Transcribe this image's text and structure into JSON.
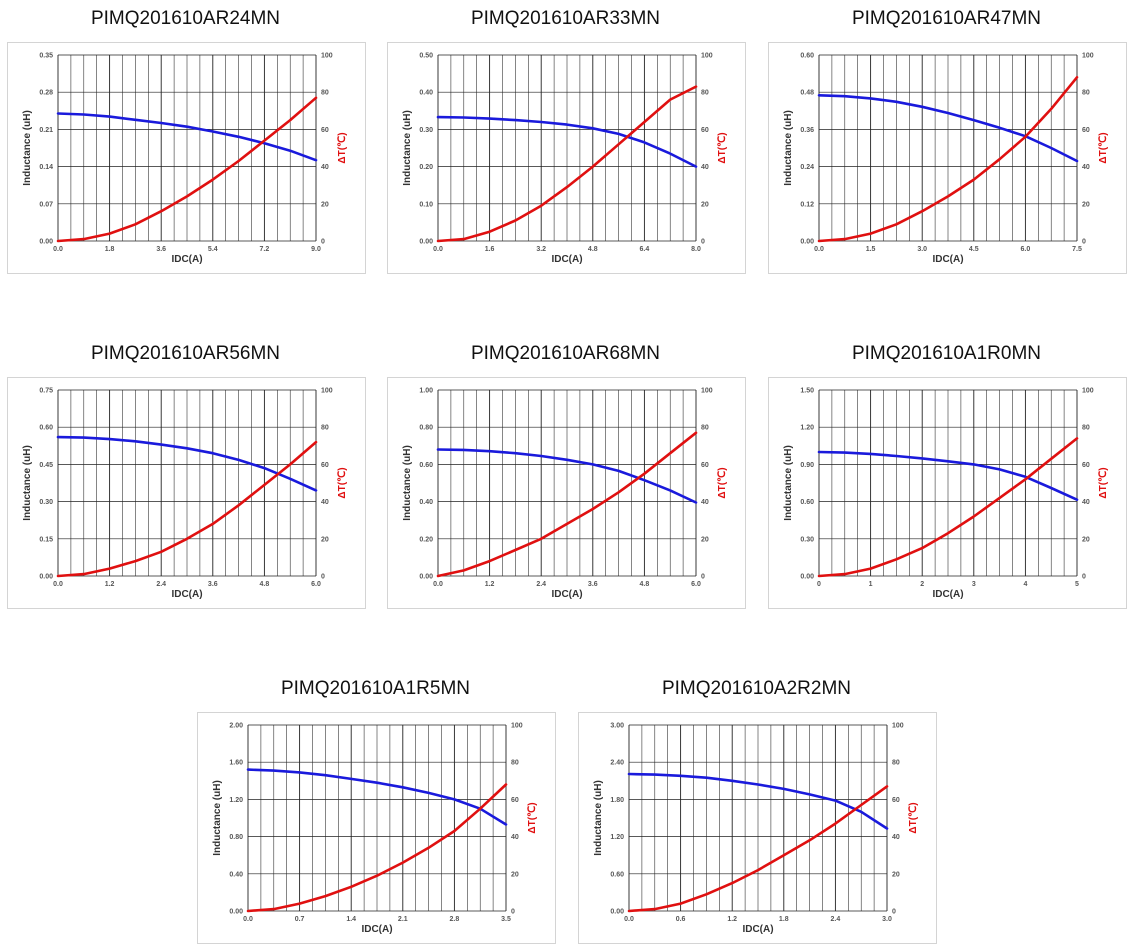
{
  "colors": {
    "inductance_line": "#1a1adc",
    "temperature_line": "#e01010",
    "grid": "#222222",
    "secondary_axis": "#e01010"
  },
  "chart_data": [
    {
      "type": "line",
      "title": "PIMQ201610AR24MN",
      "xlabel": "IDC(A)",
      "ylabel": "Inductance (uH)",
      "y2label": "ΔT(℃)",
      "xlim": [
        0,
        9
      ],
      "xticks": [
        "0.0",
        "1.8",
        "3.6",
        "5.4",
        "7.2",
        "9.0"
      ],
      "ylim": [
        0,
        0.35
      ],
      "yticks": [
        "0.00",
        "0.07",
        "0.14",
        "0.21",
        "0.28",
        "0.35"
      ],
      "y2lim": [
        0,
        100
      ],
      "y2ticks": [
        "0",
        "20",
        "40",
        "60",
        "80",
        "100"
      ],
      "grid": true,
      "series": [
        {
          "axis": "left",
          "x": [
            0,
            0.9,
            1.8,
            2.7,
            3.6,
            4.5,
            5.4,
            6.3,
            7.2,
            8.1,
            9.0
          ],
          "y": [
            0.24,
            0.238,
            0.234,
            0.228,
            0.222,
            0.215,
            0.206,
            0.196,
            0.184,
            0.17,
            0.152
          ]
        },
        {
          "axis": "right",
          "x": [
            0,
            0.9,
            1.8,
            2.7,
            3.6,
            4.5,
            5.4,
            6.3,
            7.2,
            8.1,
            9.0
          ],
          "y": [
            0,
            1,
            4,
            9,
            16,
            24,
            33,
            43,
            54,
            65,
            77
          ]
        }
      ]
    },
    {
      "type": "line",
      "title": "PIMQ201610AR33MN",
      "xlabel": "IDC(A)",
      "ylabel": "Inductance (uH)",
      "y2label": "ΔT(℃)",
      "xlim": [
        0,
        8
      ],
      "xticks": [
        "0.0",
        "1.6",
        "3.2",
        "4.8",
        "6.4",
        "8.0"
      ],
      "ylim": [
        0,
        0.5
      ],
      "yticks": [
        "0.00",
        "0.10",
        "0.20",
        "0.30",
        "0.40",
        "0.50"
      ],
      "y2lim": [
        0,
        100
      ],
      "y2ticks": [
        "0",
        "20",
        "40",
        "60",
        "80",
        "100"
      ],
      "grid": true,
      "series": [
        {
          "axis": "left",
          "x": [
            0,
            0.8,
            1.6,
            2.4,
            3.2,
            4.0,
            4.8,
            5.6,
            6.4,
            7.2,
            8.0
          ],
          "y": [
            0.333,
            0.332,
            0.329,
            0.325,
            0.32,
            0.313,
            0.303,
            0.288,
            0.265,
            0.235,
            0.2
          ]
        },
        {
          "axis": "right",
          "x": [
            0,
            0.8,
            1.6,
            2.4,
            3.2,
            4.0,
            4.8,
            5.6,
            6.4,
            7.2,
            8.0
          ],
          "y": [
            0,
            1,
            5,
            11,
            19,
            29,
            40,
            52,
            64,
            76,
            83
          ]
        }
      ]
    },
    {
      "type": "line",
      "title": "PIMQ201610AR47MN",
      "xlabel": "IDC(A)",
      "ylabel": "Inductance (uH)",
      "y2label": "ΔT(℃)",
      "xlim": [
        0,
        7.5
      ],
      "xticks": [
        "0.0",
        "1.5",
        "3.0",
        "4.5",
        "6.0",
        "7.5"
      ],
      "ylim": [
        0,
        0.6
      ],
      "yticks": [
        "0.00",
        "0.12",
        "0.24",
        "0.36",
        "0.48",
        "0.60"
      ],
      "y2lim": [
        0,
        100
      ],
      "y2ticks": [
        "0",
        "20",
        "40",
        "60",
        "80",
        "100"
      ],
      "grid": true,
      "series": [
        {
          "axis": "left",
          "x": [
            0,
            0.75,
            1.5,
            2.25,
            3.0,
            3.75,
            4.5,
            5.25,
            6.0,
            6.75,
            7.5
          ],
          "y": [
            0.47,
            0.467,
            0.46,
            0.449,
            0.433,
            0.413,
            0.39,
            0.365,
            0.338,
            0.3,
            0.258
          ]
        },
        {
          "axis": "right",
          "x": [
            0,
            0.75,
            1.5,
            2.25,
            3.0,
            3.75,
            4.5,
            5.25,
            6.0,
            6.75,
            7.5
          ],
          "y": [
            0,
            1,
            4,
            9,
            16,
            24,
            33,
            44,
            56,
            71,
            88
          ]
        }
      ]
    },
    {
      "type": "line",
      "title": "PIMQ201610AR56MN",
      "xlabel": "IDC(A)",
      "ylabel": "Inductance (uH)",
      "y2label": "ΔT(℃)",
      "xlim": [
        0,
        6
      ],
      "xticks": [
        "0.0",
        "1.2",
        "2.4",
        "3.6",
        "4.8",
        "6.0"
      ],
      "ylim": [
        0,
        0.75
      ],
      "yticks": [
        "0.00",
        "0.15",
        "0.30",
        "0.45",
        "0.60",
        "0.75"
      ],
      "y2lim": [
        0,
        100
      ],
      "y2ticks": [
        "0",
        "20",
        "40",
        "60",
        "80",
        "100"
      ],
      "grid": true,
      "series": [
        {
          "axis": "left",
          "x": [
            0,
            0.6,
            1.2,
            1.8,
            2.4,
            3.0,
            3.6,
            4.2,
            4.8,
            5.4,
            6.0
          ],
          "y": [
            0.56,
            0.558,
            0.552,
            0.543,
            0.53,
            0.515,
            0.495,
            0.468,
            0.435,
            0.392,
            0.345
          ]
        },
        {
          "axis": "right",
          "x": [
            0,
            0.6,
            1.2,
            1.8,
            2.4,
            3.0,
            3.6,
            4.2,
            4.8,
            5.4,
            6.0
          ],
          "y": [
            0,
            1,
            4,
            8,
            13,
            20,
            28,
            38,
            49,
            60,
            72
          ]
        }
      ]
    },
    {
      "type": "line",
      "title": "PIMQ201610AR68MN",
      "xlabel": "IDC(A)",
      "ylabel": "Inductance (uH)",
      "y2label": "ΔT(℃)",
      "xlim": [
        0,
        6
      ],
      "xticks": [
        "0.0",
        "1.2",
        "2.4",
        "3.6",
        "4.8",
        "6.0"
      ],
      "ylim": [
        0,
        1.0
      ],
      "yticks": [
        "0.00",
        "0.20",
        "0.40",
        "0.60",
        "0.80",
        "1.00"
      ],
      "y2lim": [
        0,
        100
      ],
      "y2ticks": [
        "0",
        "20",
        "40",
        "60",
        "80",
        "100"
      ],
      "grid": true,
      "series": [
        {
          "axis": "left",
          "x": [
            0,
            0.6,
            1.2,
            1.8,
            2.4,
            3.0,
            3.6,
            4.2,
            4.8,
            5.4,
            6.0
          ],
          "y": [
            0.68,
            0.678,
            0.671,
            0.66,
            0.645,
            0.625,
            0.6,
            0.565,
            0.515,
            0.46,
            0.395
          ]
        },
        {
          "axis": "right",
          "x": [
            0,
            0.6,
            1.2,
            1.8,
            2.4,
            3.0,
            3.6,
            4.2,
            4.8,
            5.4,
            6.0
          ],
          "y": [
            0,
            3,
            8,
            14,
            20,
            28,
            36,
            45,
            55,
            66,
            77
          ]
        }
      ]
    },
    {
      "type": "line",
      "title": "PIMQ201610A1R0MN",
      "xlabel": "IDC(A)",
      "ylabel": "Inductance (uH)",
      "y2label": "ΔT(℃)",
      "xlim": [
        0,
        5
      ],
      "xticks": [
        "0",
        "1",
        "2",
        "3",
        "4",
        "5"
      ],
      "ylim": [
        0,
        1.5
      ],
      "yticks": [
        "0.00",
        "0.30",
        "0.60",
        "0.90",
        "1.20",
        "1.50"
      ],
      "y2lim": [
        0,
        100
      ],
      "y2ticks": [
        "0",
        "20",
        "40",
        "60",
        "80",
        "100"
      ],
      "grid": true,
      "series": [
        {
          "axis": "left",
          "x": [
            0,
            0.5,
            1.0,
            1.5,
            2.0,
            2.5,
            3.0,
            3.5,
            4.0,
            4.5,
            5.0
          ],
          "y": [
            1.0,
            0.995,
            0.985,
            0.968,
            0.948,
            0.925,
            0.9,
            0.86,
            0.8,
            0.71,
            0.615
          ]
        },
        {
          "axis": "right",
          "x": [
            0,
            0.5,
            1.0,
            1.5,
            2.0,
            2.5,
            3.0,
            3.5,
            4.0,
            4.5,
            5.0
          ],
          "y": [
            0,
            1,
            4,
            9,
            15,
            23,
            32,
            42,
            52,
            63,
            74
          ]
        }
      ]
    },
    {
      "type": "line",
      "title": "PIMQ201610A1R5MN",
      "xlabel": "IDC(A)",
      "ylabel": "Inductance (uH)",
      "y2label": "ΔT(℃)",
      "xlim": [
        0,
        3.5
      ],
      "xticks": [
        "0.0",
        "0.7",
        "1.4",
        "2.1",
        "2.8",
        "3.5"
      ],
      "ylim": [
        0,
        2.0
      ],
      "yticks": [
        "0.00",
        "0.40",
        "0.80",
        "1.20",
        "1.60",
        "2.00"
      ],
      "y2lim": [
        0,
        100
      ],
      "y2ticks": [
        "0",
        "20",
        "40",
        "60",
        "80",
        "100"
      ],
      "grid": true,
      "series": [
        {
          "axis": "left",
          "x": [
            0,
            0.35,
            0.7,
            1.05,
            1.4,
            1.75,
            2.1,
            2.45,
            2.8,
            3.15,
            3.5
          ],
          "y": [
            1.52,
            1.51,
            1.49,
            1.46,
            1.42,
            1.38,
            1.33,
            1.27,
            1.2,
            1.1,
            0.93
          ]
        },
        {
          "axis": "right",
          "x": [
            0,
            0.35,
            0.7,
            1.05,
            1.4,
            1.75,
            2.1,
            2.45,
            2.8,
            3.15,
            3.5
          ],
          "y": [
            0,
            1,
            4,
            8,
            13,
            19,
            26,
            34,
            43,
            55,
            68
          ]
        }
      ]
    },
    {
      "type": "line",
      "title": "PIMQ201610A2R2MN",
      "xlabel": "IDC(A)",
      "ylabel": "Inductance (uH)",
      "y2label": "ΔT(℃)",
      "xlim": [
        0,
        3
      ],
      "xticks": [
        "0.0",
        "0.6",
        "1.2",
        "1.8",
        "2.4",
        "3.0"
      ],
      "ylim": [
        0,
        3.0
      ],
      "yticks": [
        "0.00",
        "0.60",
        "1.20",
        "1.80",
        "2.40",
        "3.00"
      ],
      "y2lim": [
        0,
        100
      ],
      "y2ticks": [
        "0",
        "20",
        "40",
        "60",
        "80",
        "100"
      ],
      "grid": true,
      "series": [
        {
          "axis": "left",
          "x": [
            0,
            0.3,
            0.6,
            0.9,
            1.2,
            1.5,
            1.8,
            2.1,
            2.4,
            2.7,
            3.0
          ],
          "y": [
            2.21,
            2.2,
            2.18,
            2.15,
            2.1,
            2.04,
            1.97,
            1.88,
            1.78,
            1.6,
            1.33
          ]
        },
        {
          "axis": "right",
          "x": [
            0,
            0.3,
            0.6,
            0.9,
            1.2,
            1.5,
            1.8,
            2.1,
            2.4,
            2.7,
            3.0
          ],
          "y": [
            0,
            1,
            4,
            9,
            15,
            22,
            30,
            38,
            47,
            57,
            67
          ]
        }
      ]
    }
  ]
}
